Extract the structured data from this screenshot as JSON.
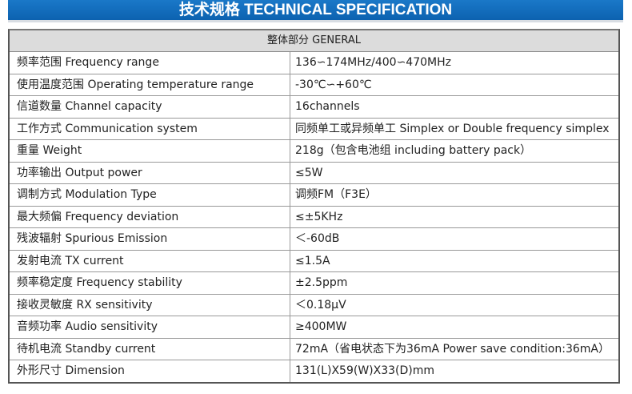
{
  "title": "技术规格 TECHNICAL SPECIFICATION",
  "section": "整体部分 GENERAL",
  "rows": [
    {
      "label": "频率范围 Frequency range",
      "value": "136∽174MHz/400∽470MHz"
    },
    {
      "label": "使用温度范围 Operating temperature range",
      "value": "-30℃∽+60℃"
    },
    {
      "label": "信道数量 Channel capacity",
      "value": "16channels"
    },
    {
      "label": "工作方式 Communication system",
      "value": "同频单工或异频单工 Simplex or Double frequency simplex"
    },
    {
      "label": "重量 Weight",
      "value": "218g（包含电池组 including battery pack）"
    },
    {
      "label": "功率输出 Output power",
      "value": "≤5W"
    },
    {
      "label": "调制方式 Modulation Type",
      "value": "调频FM（F3E）"
    },
    {
      "label": "最大频偏 Frequency deviation",
      "value": "≤±5KHz"
    },
    {
      "label": "残波辐射 Spurious Emission",
      "value": "＜-60dB"
    },
    {
      "label": "发射电流 TX current",
      "value": "≤1.5A"
    },
    {
      "label": "频率稳定度 Frequency stability",
      "value": "±2.5ppm"
    },
    {
      "label": "接收灵敏度 RX sensitivity",
      "value": "＜0.18μV"
    },
    {
      "label": "音频功率 Audio sensitivity",
      "value": "≥400MW"
    },
    {
      "label": "待机电流 Standby current",
      "value": "72mA（省电状态下为36mA Power save condition:36mA）"
    },
    {
      "label": "外形尺寸 Dimension",
      "value": "131(L)X59(W)X33(D)mm"
    }
  ],
  "colors": {
    "banner": "#0c62b0",
    "header_bg": "#dcdcdc"
  }
}
